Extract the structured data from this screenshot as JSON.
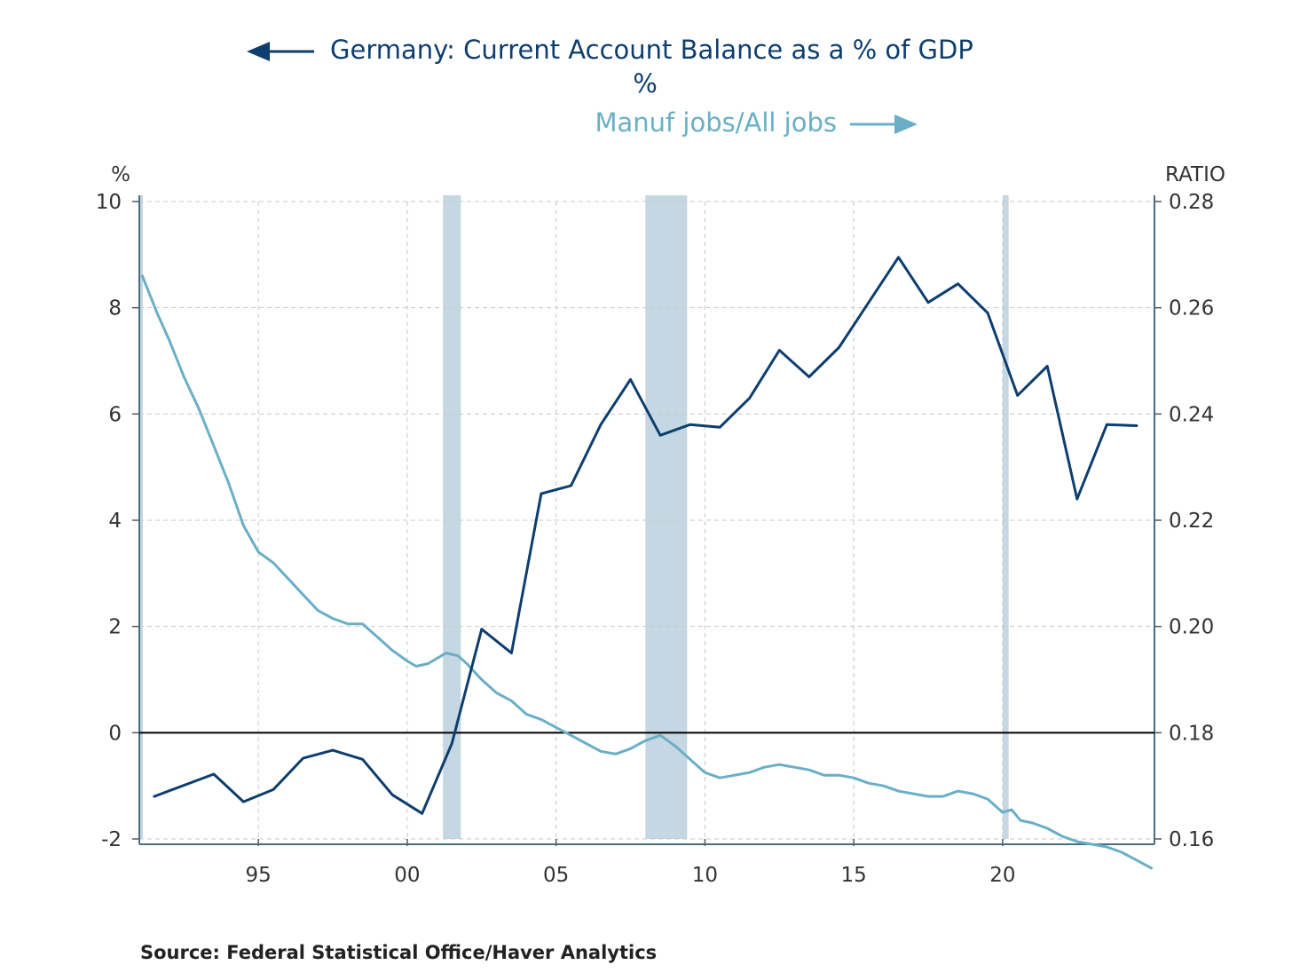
{
  "chart_data": {
    "type": "line",
    "title": "Germany: Current Account Balance as a % of GDP",
    "title_unit": "%",
    "source": "Source:  Federal Statistical Office/Haver Analytics",
    "left_axis": {
      "unit": "%",
      "ticks": [
        "10",
        "8",
        "6",
        "4",
        "2",
        "0",
        "-2"
      ],
      "ylim": [
        -2,
        10
      ]
    },
    "right_axis": {
      "unit": "RATIO",
      "ticks": [
        "0.28",
        "0.26",
        "0.24",
        "0.22",
        "0.20",
        "0.18",
        "0.16"
      ],
      "ylim": [
        0.16,
        0.28
      ]
    },
    "x_axis": {
      "ticks": [
        "95",
        "00",
        "05",
        "10",
        "15",
        "20"
      ],
      "tick_years": [
        1995,
        2000,
        2005,
        2010,
        2015,
        2020
      ],
      "xlim": [
        1991.0,
        2025.1
      ]
    },
    "grid": true,
    "zero_line": 0,
    "recessions": [
      {
        "start": 1991.0,
        "end": 1991.1
      },
      {
        "start": 2001.2,
        "end": 2001.8
      },
      {
        "start": 2008.0,
        "end": 2009.4
      },
      {
        "start": 2020.0,
        "end": 2020.2
      }
    ],
    "series": [
      {
        "name": "Germany: Current Account Balance as a % of GDP",
        "axis": "left",
        "arrow": "left",
        "color": "#0e3e6e",
        "points": [
          [
            1991.5,
            -1.2
          ],
          [
            1993.5,
            -0.78
          ],
          [
            1994.5,
            -1.3
          ],
          [
            1995.5,
            -1.07
          ],
          [
            1996.5,
            -0.48
          ],
          [
            1997.5,
            -0.33
          ],
          [
            1998.5,
            -0.5
          ],
          [
            1999.5,
            -1.17
          ],
          [
            2000.5,
            -1.52
          ],
          [
            2001.5,
            -0.2
          ],
          [
            2002.5,
            1.95
          ],
          [
            2003.5,
            1.5
          ],
          [
            2004.5,
            4.5
          ],
          [
            2005.5,
            4.65
          ],
          [
            2006.5,
            5.8
          ],
          [
            2007.5,
            6.65
          ],
          [
            2008.5,
            5.6
          ],
          [
            2009.5,
            5.8
          ],
          [
            2010.5,
            5.75
          ],
          [
            2011.5,
            6.3
          ],
          [
            2012.5,
            7.2
          ],
          [
            2013.5,
            6.7
          ],
          [
            2014.5,
            7.25
          ],
          [
            2015.5,
            8.1
          ],
          [
            2016.5,
            8.95
          ],
          [
            2017.5,
            8.1
          ],
          [
            2018.5,
            8.45
          ],
          [
            2019.5,
            7.9
          ],
          [
            2020.5,
            6.35
          ],
          [
            2021.5,
            6.9
          ],
          [
            2022.5,
            4.4
          ],
          [
            2023.5,
            5.8
          ],
          [
            2024.5,
            5.78
          ]
        ]
      },
      {
        "name": "Manuf jobs/All jobs",
        "axis": "right",
        "arrow": "right",
        "color": "#6aafc6",
        "points": [
          [
            1991.1,
            0.266
          ],
          [
            1991.6,
            0.259
          ],
          [
            1992.0,
            0.254
          ],
          [
            1992.5,
            0.247
          ],
          [
            1993.0,
            0.241
          ],
          [
            1993.5,
            0.234
          ],
          [
            1994.0,
            0.227
          ],
          [
            1994.5,
            0.219
          ],
          [
            1995.0,
            0.214
          ],
          [
            1995.5,
            0.212
          ],
          [
            1996.0,
            0.209
          ],
          [
            1996.5,
            0.206
          ],
          [
            1997.0,
            0.203
          ],
          [
            1997.5,
            0.2015
          ],
          [
            1998.0,
            0.2005
          ],
          [
            1998.5,
            0.2005
          ],
          [
            1999.0,
            0.198
          ],
          [
            1999.5,
            0.1955
          ],
          [
            2000.0,
            0.1935
          ],
          [
            2000.3,
            0.1925
          ],
          [
            2000.7,
            0.193
          ],
          [
            2001.0,
            0.194
          ],
          [
            2001.3,
            0.195
          ],
          [
            2001.7,
            0.1945
          ],
          [
            2002.0,
            0.193
          ],
          [
            2002.5,
            0.19
          ],
          [
            2003.0,
            0.1875
          ],
          [
            2003.5,
            0.186
          ],
          [
            2004.0,
            0.1835
          ],
          [
            2004.5,
            0.1825
          ],
          [
            2005.0,
            0.181
          ],
          [
            2005.5,
            0.1795
          ],
          [
            2006.0,
            0.178
          ],
          [
            2006.5,
            0.1765
          ],
          [
            2007.0,
            0.176
          ],
          [
            2007.5,
            0.177
          ],
          [
            2008.0,
            0.1785
          ],
          [
            2008.5,
            0.1795
          ],
          [
            2009.0,
            0.1775
          ],
          [
            2009.5,
            0.175
          ],
          [
            2010.0,
            0.1725
          ],
          [
            2010.5,
            0.1715
          ],
          [
            2011.0,
            0.172
          ],
          [
            2011.5,
            0.1725
          ],
          [
            2012.0,
            0.1735
          ],
          [
            2012.5,
            0.174
          ],
          [
            2013.0,
            0.1735
          ],
          [
            2013.5,
            0.173
          ],
          [
            2014.0,
            0.172
          ],
          [
            2014.5,
            0.172
          ],
          [
            2015.0,
            0.1715
          ],
          [
            2015.5,
            0.1705
          ],
          [
            2016.0,
            0.17
          ],
          [
            2016.5,
            0.169
          ],
          [
            2017.0,
            0.1685
          ],
          [
            2017.5,
            0.168
          ],
          [
            2018.0,
            0.168
          ],
          [
            2018.5,
            0.169
          ],
          [
            2019.0,
            0.1685
          ],
          [
            2019.5,
            0.1675
          ],
          [
            2020.0,
            0.165
          ],
          [
            2020.3,
            0.1655
          ],
          [
            2020.6,
            0.1635
          ],
          [
            2021.0,
            0.163
          ],
          [
            2021.5,
            0.162
          ],
          [
            2022.0,
            0.1605
          ],
          [
            2022.5,
            0.1595
          ],
          [
            2023.0,
            0.159
          ],
          [
            2023.5,
            0.1585
          ],
          [
            2024.0,
            0.1575
          ],
          [
            2024.5,
            0.156
          ],
          [
            2025.0,
            0.1545
          ]
        ]
      }
    ]
  }
}
